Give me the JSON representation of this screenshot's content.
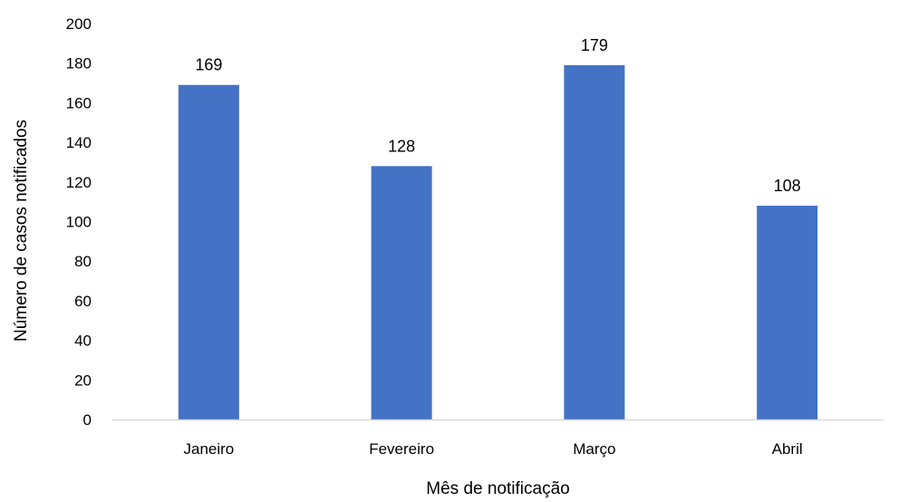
{
  "chart_data": {
    "type": "bar",
    "title": "",
    "xlabel": "Mês de notificação",
    "ylabel": "Número de casos notificados",
    "categories": [
      "Janeiro",
      "Fevereiro",
      "Março",
      "Abril"
    ],
    "values": [
      169,
      128,
      179,
      108
    ],
    "ylim": [
      0,
      200
    ],
    "ytick_step": 20,
    "grid": false,
    "legend": "none",
    "bar_color": "#4472C4",
    "axis_color": "#D9D9D9"
  }
}
